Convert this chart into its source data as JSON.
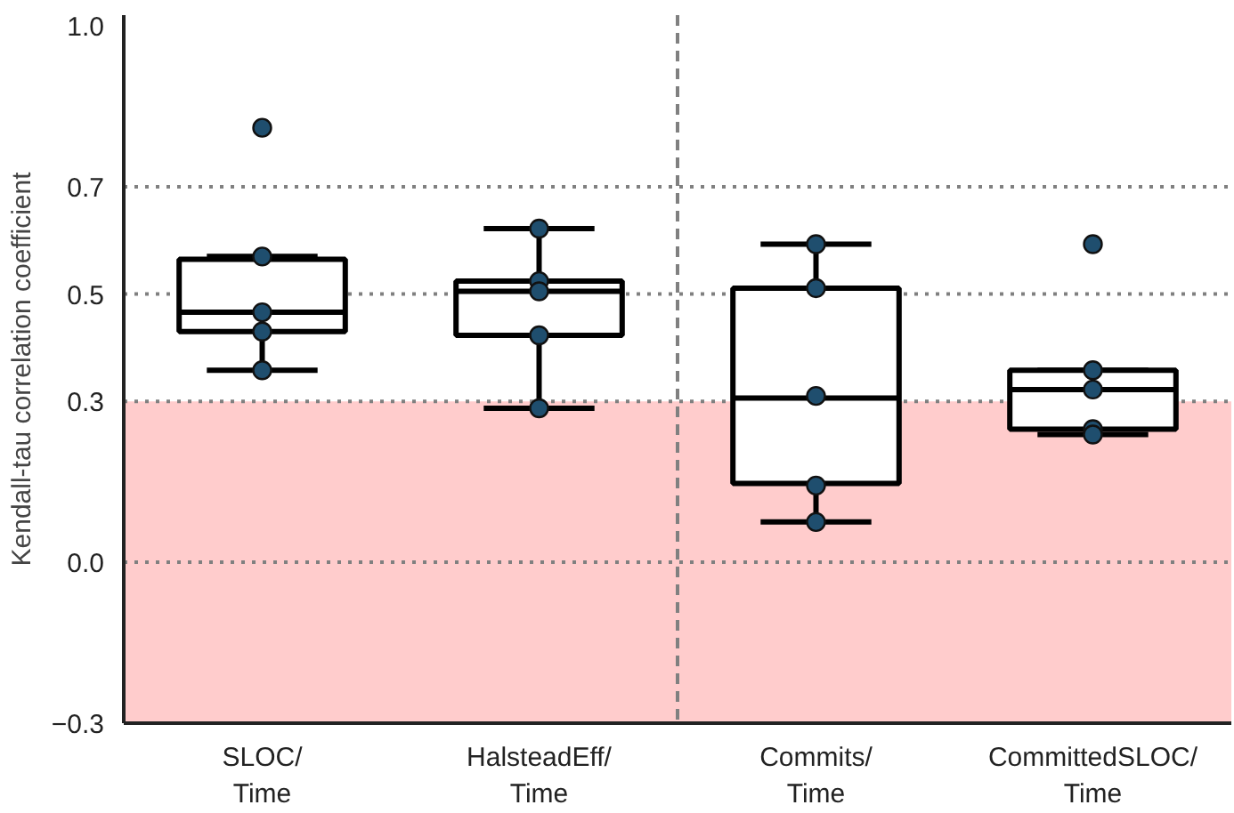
{
  "chart_data": {
    "type": "box",
    "ylabel": "Kendall-tau correlation coefficient",
    "categories": [
      "SLOC/\nTime",
      "HalsteadEff/\nTime",
      "Commits/\nTime",
      "CommittedSLOC/\nTime"
    ],
    "boxes": [
      {
        "low": 0.358,
        "q1": 0.43,
        "median": 0.466,
        "q3": 0.565,
        "high": 0.57
      },
      {
        "low": 0.287,
        "q1": 0.423,
        "median": 0.505,
        "q3": 0.524,
        "high": 0.622
      },
      {
        "low": 0.075,
        "q1": 0.147,
        "median": 0.306,
        "q3": 0.511,
        "high": 0.593
      },
      {
        "low": 0.238,
        "q1": 0.248,
        "median": 0.322,
        "q3": 0.358,
        "high": 0.358
      }
    ],
    "series": [
      {
        "type": "scatter",
        "color": "#1f4e6e",
        "x": [
          "SLOC/\nTime",
          "SLOC/\nTime",
          "SLOC/\nTime",
          "SLOC/\nTime",
          "SLOC/\nTime",
          "HalsteadEff/\nTime",
          "HalsteadEff/\nTime",
          "HalsteadEff/\nTime",
          "HalsteadEff/\nTime",
          "HalsteadEff/\nTime",
          "Commits/\nTime",
          "Commits/\nTime",
          "Commits/\nTime",
          "Commits/\nTime",
          "Commits/\nTime",
          "CommittedSLOC/\nTime",
          "CommittedSLOC/\nTime",
          "CommittedSLOC/\nTime",
          "CommittedSLOC/\nTime",
          "CommittedSLOC/\nTime"
        ],
        "values": [
          0.81,
          0.57,
          0.466,
          0.43,
          0.358,
          0.622,
          0.524,
          0.505,
          0.423,
          0.287,
          0.593,
          0.511,
          0.31,
          0.143,
          0.075,
          0.593,
          0.358,
          0.322,
          0.248,
          0.238
        ]
      }
    ],
    "marker": "circle",
    "ylim": [
      -0.3,
      1.02
    ],
    "yticks": [
      {
        "value": -0.3,
        "label": "−0.3"
      },
      {
        "value": 0,
        "label": "0.0"
      },
      0.3,
      0.5,
      0.7,
      {
        "value": 1,
        "label": "1.0"
      }
    ],
    "grid": false,
    "bands": [
      {
        "axis": "y",
        "from": -0.3,
        "to": 0.3,
        "color": "#ffcccc"
      }
    ],
    "ref_lines": [
      {
        "axis": "y",
        "value": 0,
        "color": "#808080",
        "line_style": "dotted"
      },
      {
        "axis": "y",
        "value": 0.3,
        "color": "#808080",
        "line_style": "dotted"
      },
      {
        "axis": "y",
        "value": 0.5,
        "color": "#808080",
        "line_style": "dotted"
      },
      {
        "axis": "y",
        "value": 0.7,
        "color": "#808080",
        "line_style": "dotted"
      }
    ]
  }
}
